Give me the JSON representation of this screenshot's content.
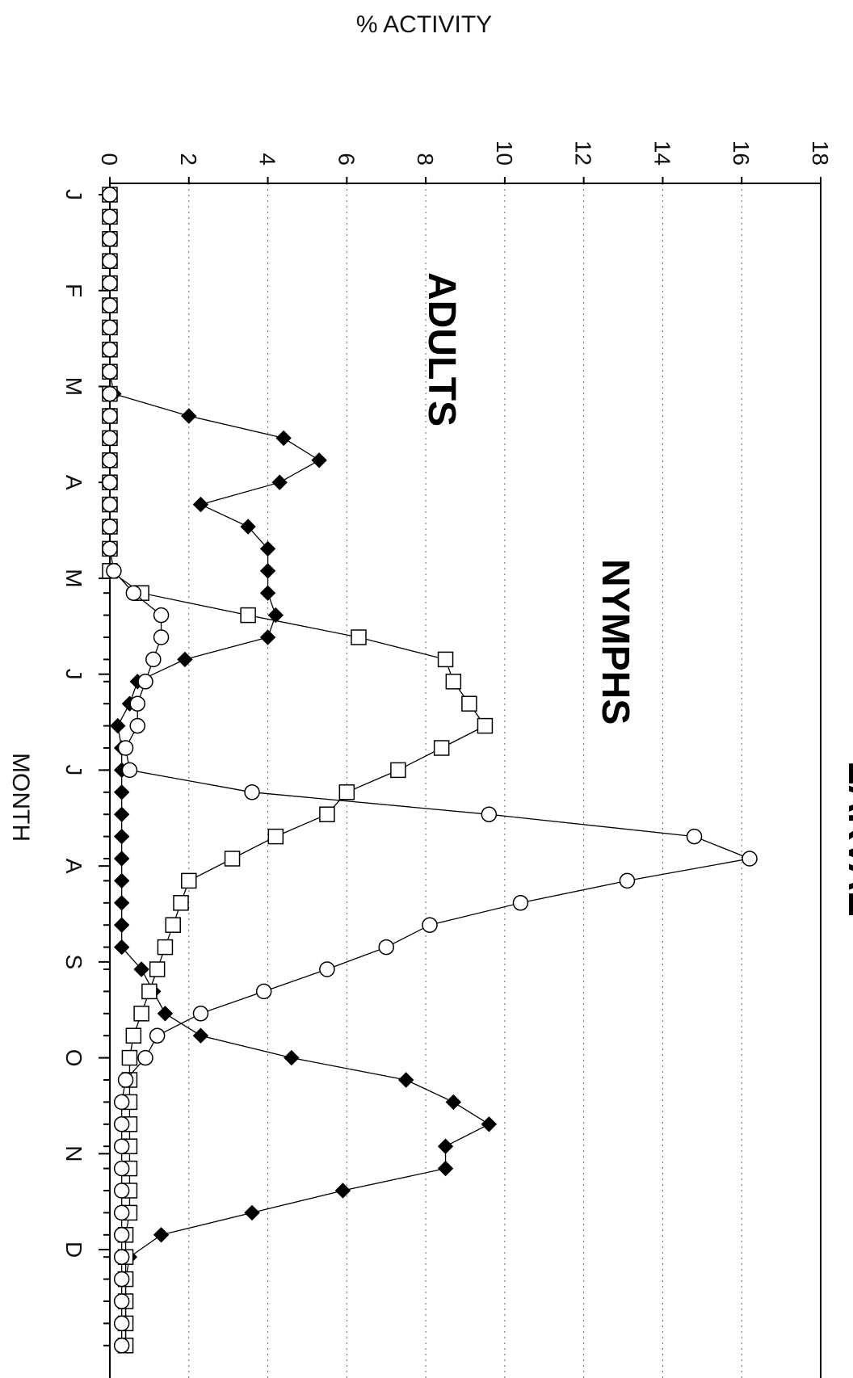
{
  "chart_data": {
    "type": "line",
    "ylabel": "% ACTIVITY",
    "xlabel": "MONTH",
    "ylim": [
      0,
      18
    ],
    "y_ticks": [
      "0",
      "2",
      "4",
      "6",
      "8",
      "10",
      "12",
      "14",
      "16",
      "18"
    ],
    "x_tick_labels": [
      "J",
      "F",
      "M",
      "A",
      "M",
      "J",
      "J",
      "A",
      "S",
      "O",
      "N",
      "D"
    ],
    "grid": "dotted horizontal at each y tick",
    "legend": "none; series named by labels inside the plot",
    "x_unit": "week of year (1-53)",
    "series": [
      {
        "name": "ADULTS",
        "marker": "filled-diamond",
        "x": [
          1,
          2,
          3,
          4,
          5,
          6,
          7,
          8,
          9,
          10,
          11,
          12,
          13,
          14,
          15,
          16,
          17,
          18,
          19,
          20,
          21,
          22,
          23,
          24,
          25,
          26,
          27,
          28,
          29,
          30,
          31,
          32,
          33,
          34,
          35,
          36,
          37,
          38,
          39,
          40,
          41,
          42,
          43,
          44,
          45,
          46,
          47,
          48,
          49,
          50,
          51,
          52,
          53
        ],
        "values": [
          0,
          0,
          0,
          0,
          0,
          0,
          0,
          0,
          0,
          0.1,
          2.0,
          4.4,
          5.3,
          4.3,
          2.3,
          3.5,
          4.0,
          4.0,
          4.0,
          4.2,
          4.0,
          1.9,
          0.7,
          0.5,
          0.2,
          0.3,
          0.3,
          0.3,
          0.3,
          0.3,
          0.3,
          0.3,
          0.3,
          0.3,
          0.3,
          0.8,
          1.1,
          1.4,
          2.3,
          4.6,
          7.5,
          8.7,
          9.6,
          8.5,
          8.5,
          5.9,
          3.6,
          1.3,
          0.5,
          0.4,
          0.4,
          0.4,
          0.4
        ]
      },
      {
        "name": "NYMPHS",
        "marker": "open-square",
        "x": [
          1,
          2,
          3,
          4,
          5,
          6,
          7,
          8,
          9,
          10,
          11,
          12,
          13,
          14,
          15,
          16,
          17,
          18,
          19,
          20,
          21,
          22,
          23,
          24,
          25,
          26,
          27,
          28,
          29,
          30,
          31,
          32,
          33,
          34,
          35,
          36,
          37,
          38,
          39,
          40,
          41,
          42,
          43,
          44,
          45,
          46,
          47,
          48,
          49,
          50,
          51,
          52,
          53
        ],
        "values": [
          0,
          0,
          0,
          0,
          0,
          0,
          0,
          0,
          0,
          0,
          0,
          0,
          0,
          0,
          0,
          0,
          0,
          0,
          0.8,
          3.5,
          6.3,
          8.5,
          8.7,
          9.1,
          9.5,
          8.4,
          7.3,
          6.0,
          5.5,
          4.2,
          3.1,
          2.0,
          1.8,
          1.6,
          1.4,
          1.2,
          1.0,
          0.8,
          0.6,
          0.5,
          0.5,
          0.5,
          0.5,
          0.5,
          0.5,
          0.5,
          0.5,
          0.4,
          0.4,
          0.4,
          0.4,
          0.4,
          0.4
        ]
      },
      {
        "name": "LARVAE",
        "marker": "open-circle",
        "x": [
          1,
          2,
          3,
          4,
          5,
          6,
          7,
          8,
          9,
          10,
          11,
          12,
          13,
          14,
          15,
          16,
          17,
          18,
          19,
          20,
          21,
          22,
          23,
          24,
          25,
          26,
          27,
          28,
          29,
          30,
          31,
          32,
          33,
          34,
          35,
          36,
          37,
          38,
          39,
          40,
          41,
          42,
          43,
          44,
          45,
          46,
          47,
          48,
          49,
          50,
          51,
          52,
          53
        ],
        "values": [
          0,
          0,
          0,
          0,
          0,
          0,
          0,
          0,
          0,
          0,
          0,
          0,
          0,
          0,
          0,
          0,
          0,
          0.1,
          0.6,
          1.3,
          1.3,
          1.1,
          0.9,
          0.7,
          0.7,
          0.4,
          0.5,
          3.6,
          9.6,
          14.8,
          16.2,
          13.1,
          10.4,
          8.1,
          7.0,
          5.5,
          3.9,
          2.3,
          1.2,
          0.9,
          0.4,
          0.3,
          0.3,
          0.3,
          0.3,
          0.3,
          0.3,
          0.3,
          0.3,
          0.3,
          0.3,
          0.3,
          0.3
        ]
      }
    ],
    "series_labels": [
      "ADULTS",
      "NYMPHS",
      "LARVAE"
    ]
  }
}
